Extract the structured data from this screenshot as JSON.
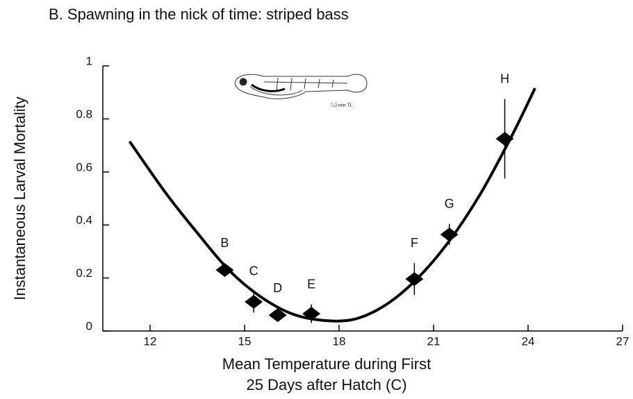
{
  "chart_data": {
    "type": "scatter",
    "title": "B. Spawning in the nick of time:  striped bass",
    "ylabel": "Instantaneous Larval Mortality",
    "xlabel": [
      "Mean Temperature during First",
      "25 Days after Hatch (C)"
    ],
    "annotation": "5,3 mm TL",
    "xlim": [
      10.5,
      27
    ],
    "ylim": [
      0,
      1
    ],
    "xticks": [
      12,
      15,
      18,
      21,
      24,
      27
    ],
    "yticks": [
      0,
      0.2,
      0.4,
      0.6,
      0.8,
      1
    ],
    "color": "#000000",
    "points": {
      "labels": [
        "B",
        "C",
        "D",
        "E",
        "F",
        "G",
        "H"
      ],
      "x": [
        14.37,
        15.29,
        16.05,
        17.12,
        20.39,
        21.5,
        23.26
      ],
      "values": [
        0.23,
        0.11,
        0.06,
        0.065,
        0.196,
        0.364,
        0.725
      ],
      "errors": [
        null,
        0.04,
        null,
        0.035,
        0.06,
        0.04,
        0.15
      ]
    },
    "curve": {
      "x": [
        11.35,
        12.5,
        13.5,
        14.5,
        15.5,
        16.5,
        17.5,
        18.5,
        19.5,
        20.5,
        21.5,
        22.5,
        23.5,
        24.22
      ],
      "values": [
        0.715,
        0.52,
        0.37,
        0.23,
        0.13,
        0.065,
        0.04,
        0.045,
        0.1,
        0.2,
        0.34,
        0.52,
        0.74,
        0.916
      ]
    }
  }
}
